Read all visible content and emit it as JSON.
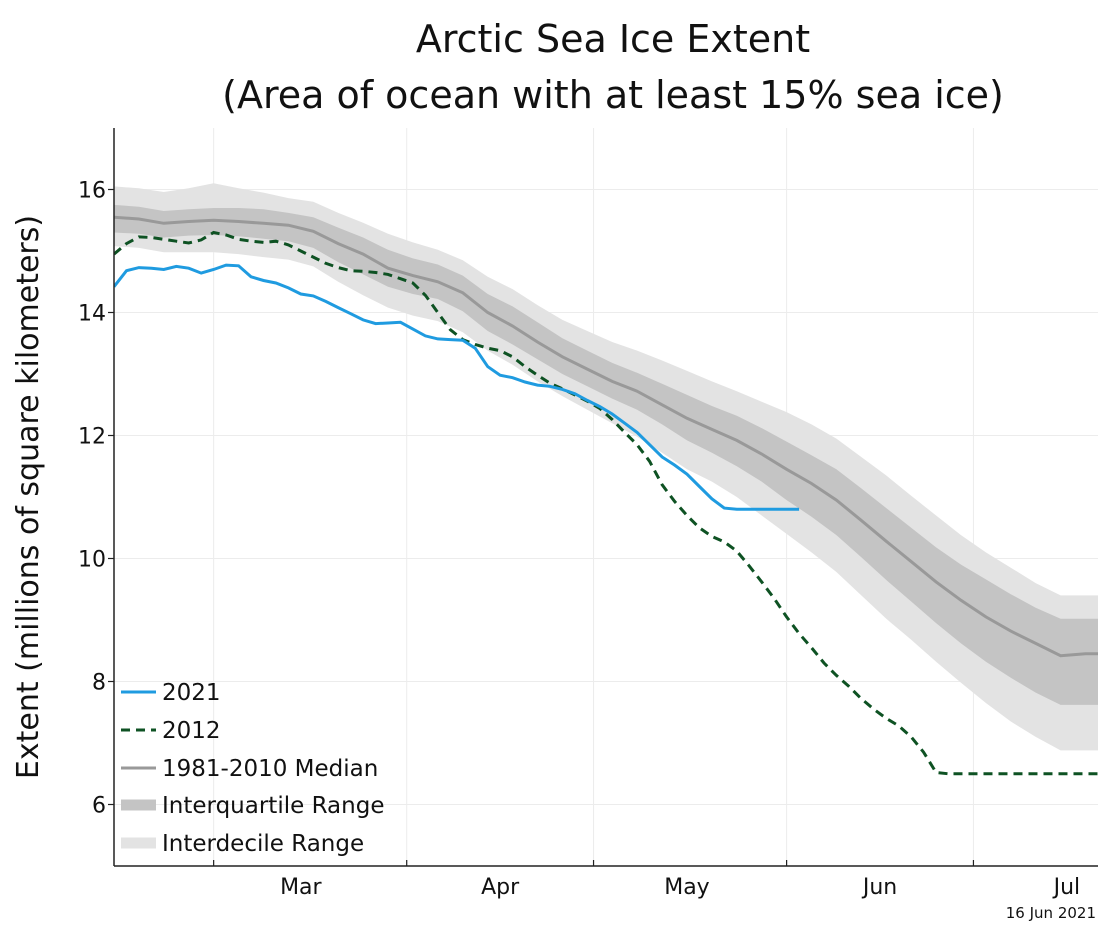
{
  "chart_data": {
    "type": "line",
    "title_line1": "Arctic Sea Ice Extent",
    "title_line2": "(Area of ocean with at least 15% sea ice)",
    "ylabel": "Extent (millions of square kilometers)",
    "xlabel": "",
    "ylim": [
      5,
      17
    ],
    "xlim": [
      44,
      202
    ],
    "y_ticks": [
      6,
      8,
      10,
      12,
      14,
      16
    ],
    "y_tick_labels": [
      "6",
      "8",
      "10",
      "12",
      "14",
      "16"
    ],
    "x_ticks": [
      {
        "day": 59,
        "label": "Mar"
      },
      {
        "day": 91,
        "label": "Apr"
      },
      {
        "day": 121,
        "label": "May"
      },
      {
        "day": 152,
        "label": "Jun"
      },
      {
        "day": 182,
        "label": "Jul"
      }
    ],
    "month_boundaries": [
      60,
      91,
      121,
      152,
      182
    ],
    "grid": true,
    "legend_position": "bottom-left",
    "legend": [
      "2021",
      "2012",
      "1981-2010 Median",
      "Interquartile Range",
      "Interdecile Range"
    ],
    "date_stamp": "16 Jun 2021",
    "colors": {
      "s2021": "#1f9be0",
      "s2012": "#0e5223",
      "median": "#999999",
      "iqr": "#c4c4c4",
      "idr": "#e3e3e3",
      "grid": "#ececec",
      "axis": "#222222"
    },
    "series": [
      {
        "name": "2021",
        "x": [
          44,
          46,
          48,
          50,
          52,
          54,
          56,
          58,
          60,
          62,
          64,
          66,
          68,
          70,
          72,
          74,
          76,
          78,
          80,
          82,
          84,
          86,
          88,
          90,
          92,
          94,
          96,
          98,
          100,
          102,
          104,
          106,
          108,
          110,
          112,
          114,
          116,
          118,
          120,
          122,
          124,
          126,
          128,
          130,
          132,
          134,
          136,
          138,
          140,
          142,
          144,
          146,
          148,
          150,
          152,
          154,
          156
        ],
        "values": [
          14.42,
          14.68,
          14.73,
          14.72,
          14.7,
          14.75,
          14.72,
          14.64,
          14.7,
          14.77,
          14.76,
          14.58,
          14.52,
          14.48,
          14.4,
          14.3,
          14.27,
          14.18,
          14.08,
          13.98,
          13.88,
          13.82,
          13.83,
          13.84,
          13.73,
          13.62,
          13.57,
          13.56,
          13.55,
          13.42,
          13.12,
          12.98,
          12.94,
          12.87,
          12.82,
          12.8,
          12.75,
          12.68,
          12.57,
          12.47,
          12.35,
          12.2,
          12.05,
          11.85,
          11.65,
          11.52,
          11.37,
          11.17,
          10.97,
          10.82,
          10.8,
          10.8,
          10.8,
          10.8,
          10.8,
          10.8,
          10.8
        ]
      },
      {
        "name": "2012",
        "x": [
          44,
          46,
          48,
          50,
          52,
          54,
          56,
          58,
          60,
          62,
          64,
          66,
          68,
          70,
          72,
          74,
          76,
          78,
          80,
          82,
          84,
          86,
          88,
          90,
          92,
          94,
          96,
          98,
          100,
          102,
          104,
          106,
          108,
          110,
          112,
          114,
          116,
          118,
          120,
          122,
          124,
          126,
          128,
          130,
          132,
          134,
          136,
          138,
          140,
          142,
          144,
          146,
          148,
          150,
          152,
          154,
          156,
          158,
          160,
          162,
          164,
          166,
          168,
          170,
          172,
          174,
          176,
          178,
          180,
          182,
          184,
          186,
          188,
          190,
          192,
          194,
          196,
          198,
          200,
          202
        ],
        "values": [
          14.95,
          15.12,
          15.23,
          15.22,
          15.19,
          15.16,
          15.13,
          15.18,
          15.3,
          15.26,
          15.19,
          15.16,
          15.14,
          15.16,
          15.1,
          15.0,
          14.9,
          14.8,
          14.73,
          14.68,
          14.67,
          14.65,
          14.62,
          14.55,
          14.48,
          14.28,
          14.0,
          13.72,
          13.56,
          13.48,
          13.42,
          13.38,
          13.28,
          13.12,
          12.98,
          12.85,
          12.76,
          12.66,
          12.56,
          12.44,
          12.26,
          12.05,
          11.85,
          11.58,
          11.2,
          10.93,
          10.7,
          10.5,
          10.36,
          10.27,
          10.12,
          9.88,
          9.62,
          9.35,
          9.05,
          8.78,
          8.55,
          8.3,
          8.1,
          7.92,
          7.72,
          7.55,
          7.4,
          7.28,
          7.1,
          6.85,
          6.52,
          6.5,
          6.5,
          6.5,
          6.5,
          6.5,
          6.5,
          6.5,
          6.5,
          6.5,
          6.5,
          6.5,
          6.5,
          6.5
        ]
      },
      {
        "name": "1981-2010 Median",
        "x": [
          44,
          48,
          52,
          56,
          60,
          64,
          68,
          72,
          76,
          80,
          84,
          88,
          92,
          96,
          100,
          104,
          108,
          112,
          116,
          120,
          124,
          128,
          132,
          136,
          140,
          144,
          148,
          152,
          156,
          160,
          164,
          168,
          172,
          176,
          180,
          184,
          188,
          192,
          196,
          200,
          202
        ],
        "values": [
          15.55,
          15.52,
          15.45,
          15.48,
          15.5,
          15.48,
          15.45,
          15.42,
          15.32,
          15.12,
          14.95,
          14.72,
          14.6,
          14.5,
          14.32,
          14.0,
          13.78,
          13.52,
          13.28,
          13.08,
          12.88,
          12.72,
          12.5,
          12.28,
          12.1,
          11.92,
          11.7,
          11.45,
          11.22,
          10.95,
          10.62,
          10.28,
          9.95,
          9.62,
          9.32,
          9.05,
          8.82,
          8.62,
          8.42,
          8.45,
          8.45
        ]
      }
    ],
    "bands": {
      "x": [
        44,
        48,
        52,
        56,
        60,
        64,
        68,
        72,
        76,
        80,
        84,
        88,
        92,
        96,
        100,
        104,
        108,
        112,
        116,
        120,
        124,
        128,
        132,
        136,
        140,
        144,
        148,
        152,
        156,
        160,
        164,
        168,
        172,
        176,
        180,
        184,
        188,
        192,
        196,
        200,
        202
      ],
      "iqr_low": [
        15.3,
        15.28,
        15.22,
        15.25,
        15.26,
        15.24,
        15.2,
        15.16,
        15.05,
        14.82,
        14.62,
        14.42,
        14.3,
        14.22,
        14.02,
        13.7,
        13.48,
        13.24,
        13.0,
        12.8,
        12.6,
        12.42,
        12.18,
        11.92,
        11.72,
        11.5,
        11.25,
        10.95,
        10.68,
        10.38,
        10.02,
        9.65,
        9.3,
        8.95,
        8.62,
        8.32,
        8.06,
        7.82,
        7.62,
        7.62,
        7.62
      ],
      "iqr_high": [
        15.75,
        15.72,
        15.65,
        15.68,
        15.7,
        15.7,
        15.68,
        15.62,
        15.55,
        15.38,
        15.22,
        15.02,
        14.88,
        14.78,
        14.6,
        14.3,
        14.1,
        13.84,
        13.58,
        13.38,
        13.18,
        13.02,
        12.84,
        12.66,
        12.48,
        12.32,
        12.12,
        11.9,
        11.68,
        11.45,
        11.14,
        10.82,
        10.5,
        10.18,
        9.9,
        9.66,
        9.42,
        9.2,
        9.02,
        9.02,
        9.02
      ],
      "idr_low": [
        15.08,
        15.05,
        14.98,
        14.98,
        14.98,
        14.95,
        14.9,
        14.86,
        14.75,
        14.5,
        14.28,
        14.08,
        13.95,
        13.86,
        13.68,
        13.38,
        13.15,
        12.88,
        12.64,
        12.42,
        12.2,
        11.98,
        11.72,
        11.45,
        11.25,
        11.0,
        10.7,
        10.4,
        10.1,
        9.78,
        9.4,
        9.02,
        8.68,
        8.32,
        7.98,
        7.65,
        7.35,
        7.1,
        6.88,
        6.88,
        6.88
      ],
      "idr_high": [
        16.05,
        16.02,
        15.96,
        16.02,
        16.1,
        16.02,
        15.95,
        15.86,
        15.8,
        15.62,
        15.46,
        15.28,
        15.14,
        15.02,
        14.85,
        14.58,
        14.38,
        14.12,
        13.88,
        13.7,
        13.52,
        13.38,
        13.22,
        13.05,
        12.88,
        12.72,
        12.55,
        12.38,
        12.18,
        11.95,
        11.65,
        11.35,
        11.02,
        10.7,
        10.38,
        10.1,
        9.85,
        9.6,
        9.4,
        9.4,
        9.4
      ]
    }
  }
}
